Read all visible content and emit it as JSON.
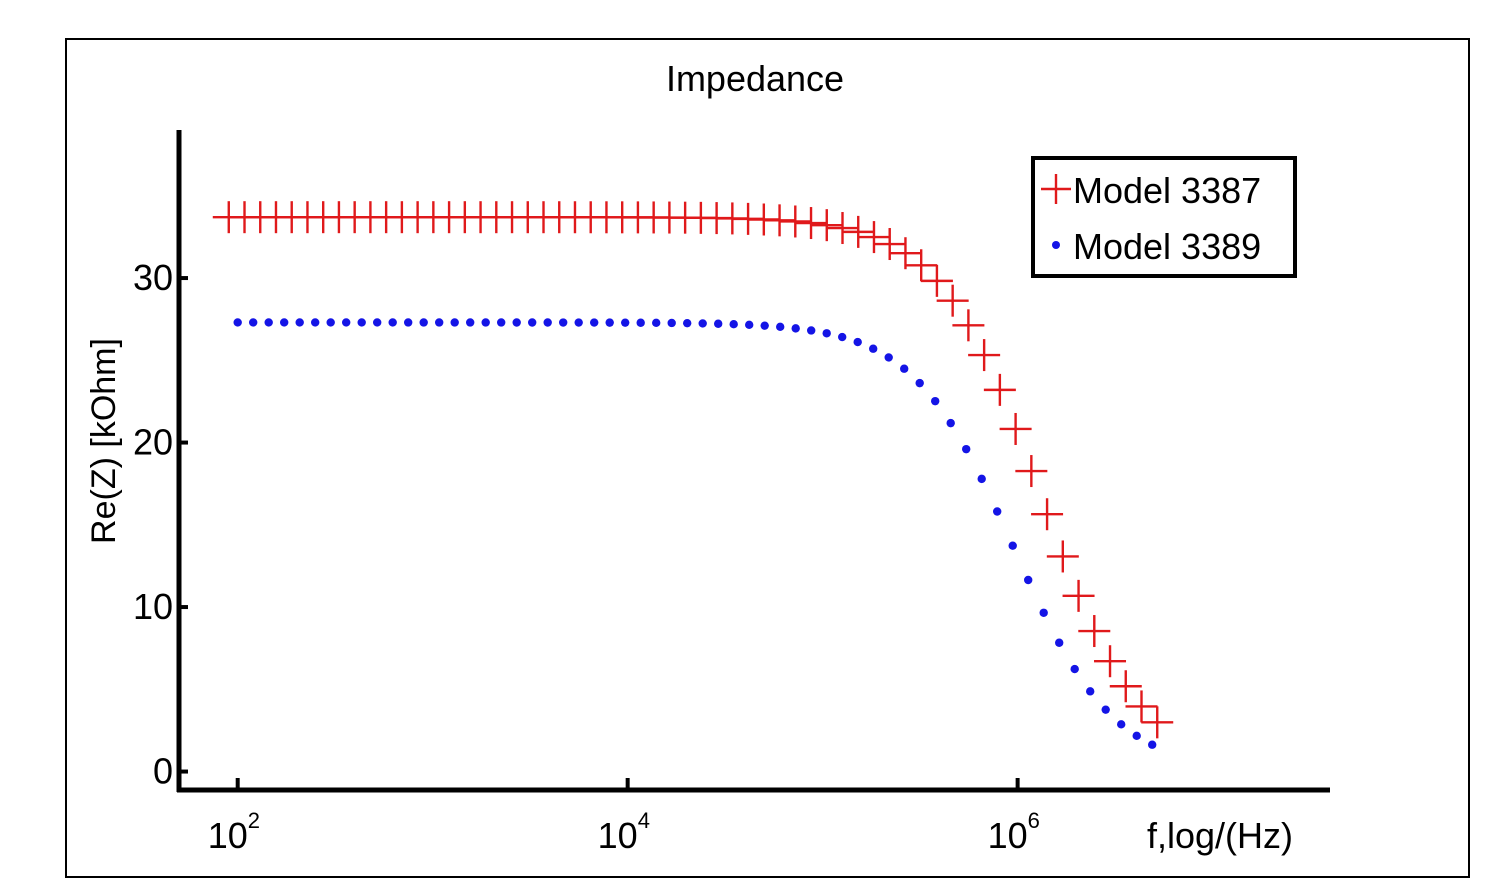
{
  "chart_data": {
    "type": "scatter",
    "title": "Impedance",
    "xlabel": "f,log/(Hz)",
    "ylabel": "Re(Z) [kOhm]",
    "xscale": "log",
    "xlim": [
      50,
      40000000
    ],
    "ylim": [
      -1,
      39
    ],
    "x_ticks": [
      {
        "base": "10",
        "exp": "2",
        "value": 100
      },
      {
        "base": "10",
        "exp": "4",
        "value": 10000
      },
      {
        "base": "10",
        "exp": "6",
        "value": 1000000
      }
    ],
    "y_ticks": [
      "0",
      "10",
      "20",
      "30"
    ],
    "y_tick_values": [
      0,
      10,
      20,
      30
    ],
    "legend_position": "top-right",
    "grid": false,
    "series": [
      {
        "name": "Model 3387",
        "marker": "plus",
        "color": "#e0191b",
        "R": 33.7,
        "fc": 1300000,
        "n": 0.84,
        "x_start": 90,
        "x_end": 5200000,
        "points": 60
      },
      {
        "name": "Model 3389",
        "marker": "dot",
        "color": "#1414e6",
        "R": 27.3,
        "fc": 950000,
        "n": 0.84,
        "x_start": 100,
        "x_end": 4900000,
        "points": 60
      }
    ]
  }
}
